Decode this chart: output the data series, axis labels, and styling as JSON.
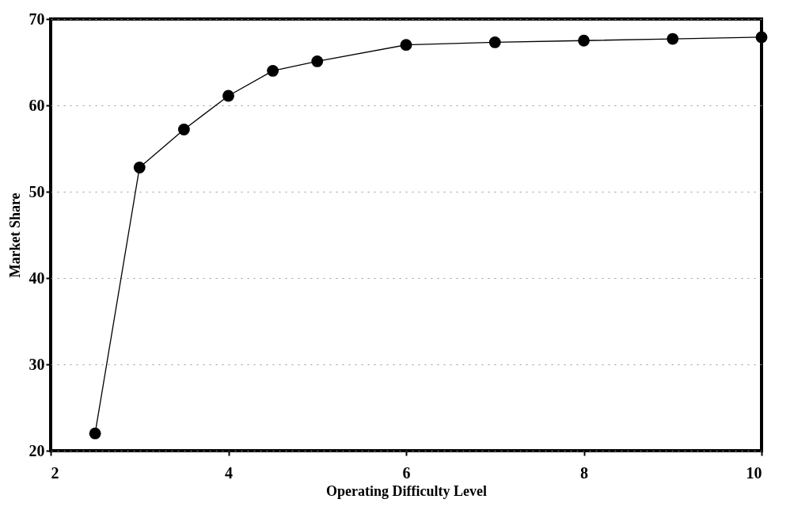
{
  "chart_data": {
    "type": "line",
    "xlabel": "Operating Difficulty Level",
    "ylabel": "Market Share",
    "x": [
      2.5,
      3,
      3.5,
      4,
      4.5,
      5,
      6,
      7,
      8,
      9,
      10
    ],
    "series": [
      {
        "color": "#000000",
        "values": [
          22,
          52.8,
          57.2,
          61.1,
          64,
          65.1,
          67,
          67.3,
          67.5,
          67.7,
          67.9
        ]
      }
    ],
    "xlim": [
      2,
      10
    ],
    "xticks": [
      2,
      4,
      6,
      8,
      10
    ],
    "ylim": [
      20,
      70
    ],
    "yticks": [
      20,
      30,
      40,
      50,
      60,
      70
    ],
    "grid": "y",
    "marker": "circle",
    "line_style": "solid"
  }
}
